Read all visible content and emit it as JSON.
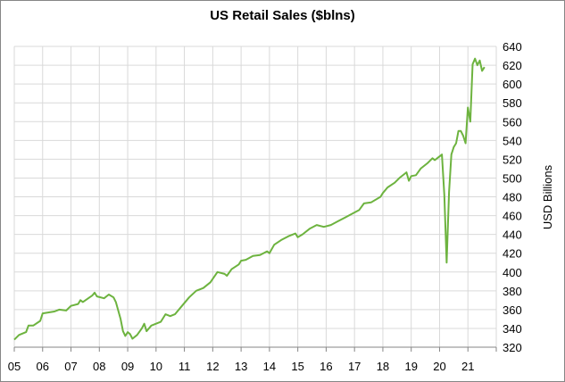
{
  "chart_data": {
    "type": "line",
    "title": "US Retail Sales ($blns)",
    "xlabel": "",
    "ylabel": "USD Billions",
    "y_axis_position": "right",
    "ylim": [
      320,
      640
    ],
    "yticks": [
      320,
      340,
      360,
      380,
      400,
      420,
      440,
      460,
      480,
      500,
      520,
      540,
      560,
      580,
      600,
      620,
      640
    ],
    "xlim": [
      "2005-01",
      "2022-01"
    ],
    "xtick_labels": [
      "05",
      "06",
      "07",
      "08",
      "09",
      "10",
      "11",
      "12",
      "13",
      "14",
      "15",
      "16",
      "17",
      "18",
      "19",
      "20",
      "21"
    ],
    "grid": true,
    "legend": "none",
    "colors": {
      "line": "#6DB33F",
      "grid": "#D9D9D9"
    },
    "series": [
      {
        "x": [
          "2005-01",
          "2005-03",
          "2005-06",
          "2005-07",
          "2005-09",
          "2005-12",
          "2006-01",
          "2006-06",
          "2006-08",
          "2006-11",
          "2007-01",
          "2007-04",
          "2007-05",
          "2007-06",
          "2007-10",
          "2007-11",
          "2007-12",
          "2008-03",
          "2008-05",
          "2008-07",
          "2008-08",
          "2008-10",
          "2008-11",
          "2008-12",
          "2009-01",
          "2009-02",
          "2009-03",
          "2009-05",
          "2009-07",
          "2009-08",
          "2009-09",
          "2009-11",
          "2010-01",
          "2010-03",
          "2010-05",
          "2010-07",
          "2010-09",
          "2010-12",
          "2011-03",
          "2011-06",
          "2011-09",
          "2011-12",
          "2012-03",
          "2012-06",
          "2012-07",
          "2012-09",
          "2012-12",
          "2013-01",
          "2013-03",
          "2013-06",
          "2013-09",
          "2013-12",
          "2014-01",
          "2014-03",
          "2014-06",
          "2014-09",
          "2014-12",
          "2015-01",
          "2015-03",
          "2015-06",
          "2015-09",
          "2015-12",
          "2016-03",
          "2016-06",
          "2016-09",
          "2016-12",
          "2017-03",
          "2017-05",
          "2017-08",
          "2017-12",
          "2018-01",
          "2018-03",
          "2018-06",
          "2018-08",
          "2018-11",
          "2018-12",
          "2019-01",
          "2019-03",
          "2019-05",
          "2019-08",
          "2019-10",
          "2019-11",
          "2020-01",
          "2020-02",
          "2020-03",
          "2020-04",
          "2020-05",
          "2020-06",
          "2020-07",
          "2020-08",
          "2020-09",
          "2020-10",
          "2020-11",
          "2020-12",
          "2021-01",
          "2021-02",
          "2021-03",
          "2021-04",
          "2021-05",
          "2021-06",
          "2021-07",
          "2021-08"
        ],
        "values": [
          328,
          333,
          336,
          343,
          343,
          348,
          356,
          358,
          360,
          359,
          364,
          366,
          370,
          368,
          375,
          378,
          374,
          372,
          376,
          373,
          368,
          350,
          337,
          332,
          336,
          334,
          329,
          333,
          340,
          345,
          337,
          343,
          345,
          347,
          355,
          353,
          355,
          364,
          373,
          380,
          383,
          389,
          400,
          398,
          396,
          403,
          408,
          412,
          413,
          417,
          418,
          422,
          420,
          429,
          434,
          438,
          441,
          437,
          440,
          446,
          450,
          448,
          450,
          454,
          458,
          462,
          466,
          473,
          474,
          480,
          484,
          490,
          495,
          500,
          506,
          497,
          502,
          503,
          510,
          516,
          521,
          519,
          523,
          525,
          482,
          410,
          485,
          525,
          533,
          537,
          550,
          550,
          545,
          537,
          575,
          560,
          621,
          627,
          620,
          625,
          614,
          618
        ]
      }
    ]
  }
}
